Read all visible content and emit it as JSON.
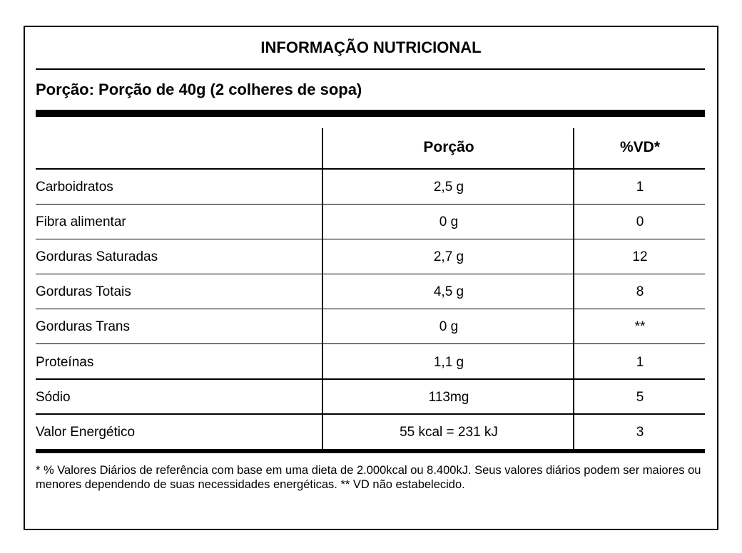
{
  "title": "INFORMAÇÃO NUTRICIONAL",
  "portion": "Porção: Porção de 40g (2 colheres de sopa)",
  "headers": {
    "col1": "",
    "col2": "Porção",
    "col3": "%VD*"
  },
  "rows": [
    {
      "name": "Carboidratos",
      "amount": "2,5 g",
      "vd": "1"
    },
    {
      "name": "Fibra alimentar",
      "amount": "0 g",
      "vd": "0"
    },
    {
      "name": "Gorduras Saturadas",
      "amount": "2,7 g",
      "vd": "12"
    },
    {
      "name": "Gorduras Totais",
      "amount": "4,5 g",
      "vd": "8"
    },
    {
      "name": "Gorduras Trans",
      "amount": "0 g",
      "vd": "**"
    },
    {
      "name": "Proteínas",
      "amount": "1,1 g",
      "vd": "1"
    },
    {
      "name": "Sódio",
      "amount": "113mg",
      "vd": "5"
    },
    {
      "name": "Valor Energético",
      "amount": "55 kcal = 231 kJ",
      "vd": "3"
    }
  ],
  "footnote": "* % Valores Diários de referência com base em uma dieta de 2.000kcal ou 8.400kJ. Seus valores diários podem ser maiores ou menores dependendo de suas necessidades energéticas. ** VD não estabelecido."
}
